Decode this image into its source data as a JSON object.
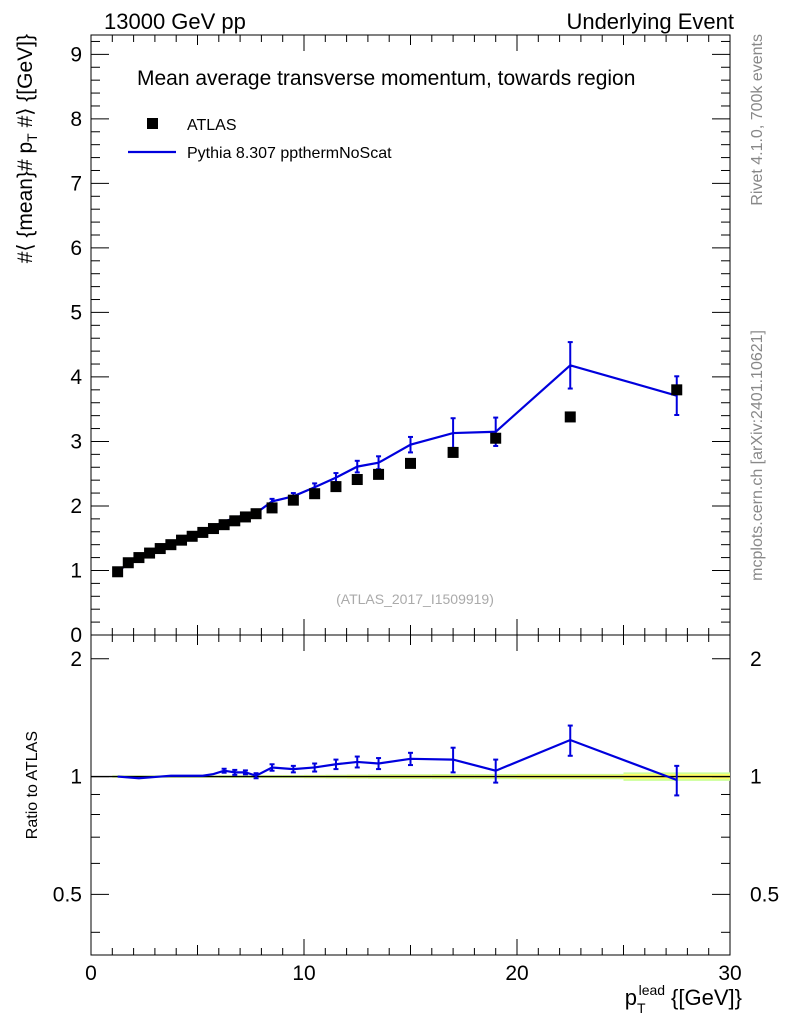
{
  "header": {
    "left": "13000 GeV pp",
    "right": "Underlying Event"
  },
  "side_labels": {
    "rivet": "Rivet 4.1.0,  700k events",
    "mcplots": "mcplots.cern.ch [arXiv:2401.10621]"
  },
  "colors": {
    "data": "#000000",
    "mc": "#0000dd",
    "band_inner": "#ffff66",
    "band_outer": "#ccff99"
  },
  "chart_data": {
    "type": "line",
    "title": "Mean average transverse momentum, towards region",
    "analysis_id": "(ATLAS_2017_I1509919)",
    "xlabel": "p_T^lead [[GeV]]",
    "xlabel_main": "p",
    "xlabel_sub": "T",
    "xlabel_sup": "lead",
    "xlabel_unit": "{[GeV]}",
    "ylabel": "#langle {mean}# p_T #rangle {[GeV]}",
    "ylabel_parts": [
      "#⟨ {mean}# p",
      "T",
      " #⟩ {[GeV]}"
    ],
    "ratio_ylabel": "Ratio to ATLAS",
    "xlim": [
      0,
      30
    ],
    "ylim": [
      0,
      9.3
    ],
    "ratio_ylim": [
      0.35,
      2.3
    ],
    "x_ticks": [
      "0",
      "10",
      "20",
      "30"
    ],
    "x_tick_values": [
      0,
      10,
      20,
      30
    ],
    "y_ticks": [
      "0",
      "1",
      "2",
      "3",
      "4",
      "5",
      "6",
      "7",
      "8",
      "9"
    ],
    "y_tick_values": [
      0,
      1,
      2,
      3,
      4,
      5,
      6,
      7,
      8,
      9
    ],
    "ratio_ticks": [
      "0.5",
      "1",
      "2"
    ],
    "ratio_tick_values": [
      0.5,
      1,
      2
    ],
    "legend": [
      "ATLAS",
      "Pythia 8.307 ppthermNoScat"
    ],
    "series": [
      {
        "name": "ATLAS",
        "x": [
          1.25,
          1.75,
          2.25,
          2.75,
          3.25,
          3.75,
          4.25,
          4.75,
          5.25,
          5.75,
          6.25,
          6.75,
          7.25,
          7.75,
          8.5,
          9.5,
          10.5,
          11.5,
          12.5,
          13.5,
          15.0,
          17.0,
          19.0,
          22.5,
          27.5
        ],
        "y": [
          0.98,
          1.12,
          1.2,
          1.27,
          1.34,
          1.4,
          1.47,
          1.53,
          1.59,
          1.65,
          1.71,
          1.77,
          1.83,
          1.88,
          1.97,
          2.09,
          2.19,
          2.3,
          2.41,
          2.49,
          2.66,
          2.83,
          3.05,
          3.38,
          3.8
        ]
      },
      {
        "name": "Pythia 8.307 ppthermNoScat",
        "x": [
          1.25,
          1.75,
          2.25,
          2.75,
          3.25,
          3.75,
          4.25,
          4.75,
          5.25,
          5.75,
          6.25,
          6.75,
          7.25,
          7.75,
          8.5,
          9.5,
          10.5,
          11.5,
          12.5,
          13.5,
          15.0,
          17.0,
          19.0,
          22.5,
          27.5
        ],
        "y": [
          0.98,
          1.11,
          1.19,
          1.27,
          1.34,
          1.41,
          1.48,
          1.54,
          1.6,
          1.68,
          1.76,
          1.81,
          1.87,
          1.89,
          2.07,
          2.15,
          2.29,
          2.44,
          2.61,
          2.67,
          2.95,
          3.13,
          3.15,
          4.18,
          3.71
        ],
        "yerr": [
          0.02,
          0.02,
          0.02,
          0.02,
          0.02,
          0.02,
          0.02,
          0.02,
          0.02,
          0.02,
          0.03,
          0.03,
          0.03,
          0.03,
          0.04,
          0.05,
          0.06,
          0.07,
          0.09,
          0.1,
          0.12,
          0.23,
          0.22,
          0.36,
          0.3
        ]
      }
    ],
    "ratio": {
      "x": [
        1.25,
        1.75,
        2.25,
        2.75,
        3.25,
        3.75,
        4.25,
        4.75,
        5.25,
        5.75,
        6.25,
        6.75,
        7.25,
        7.75,
        8.5,
        9.5,
        10.5,
        11.5,
        12.5,
        13.5,
        15.0,
        17.0,
        19.0,
        22.5,
        27.5
      ],
      "y": [
        1.0,
        0.995,
        0.99,
        0.995,
        1.0,
        1.005,
        1.005,
        1.005,
        1.005,
        1.015,
        1.035,
        1.025,
        1.025,
        1.005,
        1.055,
        1.045,
        1.055,
        1.075,
        1.09,
        1.08,
        1.11,
        1.105,
        1.035,
        1.24,
        0.98
      ],
      "yerr": [
        0.005,
        0.005,
        0.005,
        0.005,
        0.005,
        0.005,
        0.005,
        0.005,
        0.006,
        0.008,
        0.012,
        0.015,
        0.012,
        0.015,
        0.02,
        0.02,
        0.025,
        0.03,
        0.035,
        0.035,
        0.04,
        0.08,
        0.07,
        0.11,
        0.085
      ],
      "band_edges": [
        1.0,
        1.5,
        2.0,
        2.5,
        3.0,
        3.5,
        4.0,
        4.5,
        5.0,
        5.5,
        6.0,
        6.5,
        7.0,
        7.5,
        8.0,
        9.0,
        10.0,
        11.0,
        12.0,
        13.0,
        14.0,
        16.0,
        18.0,
        20.0,
        25.0,
        30.0
      ],
      "band_inner": [
        0.004,
        0.004,
        0.004,
        0.004,
        0.004,
        0.004,
        0.004,
        0.004,
        0.004,
        0.004,
        0.004,
        0.004,
        0.004,
        0.004,
        0.005,
        0.005,
        0.006,
        0.006,
        0.007,
        0.007,
        0.008,
        0.008,
        0.008,
        0.01,
        0.015
      ],
      "band_outer": [
        0.007,
        0.007,
        0.007,
        0.007,
        0.007,
        0.007,
        0.007,
        0.007,
        0.007,
        0.007,
        0.008,
        0.008,
        0.008,
        0.008,
        0.009,
        0.009,
        0.01,
        0.011,
        0.012,
        0.013,
        0.014,
        0.015,
        0.015,
        0.016,
        0.025
      ]
    }
  }
}
